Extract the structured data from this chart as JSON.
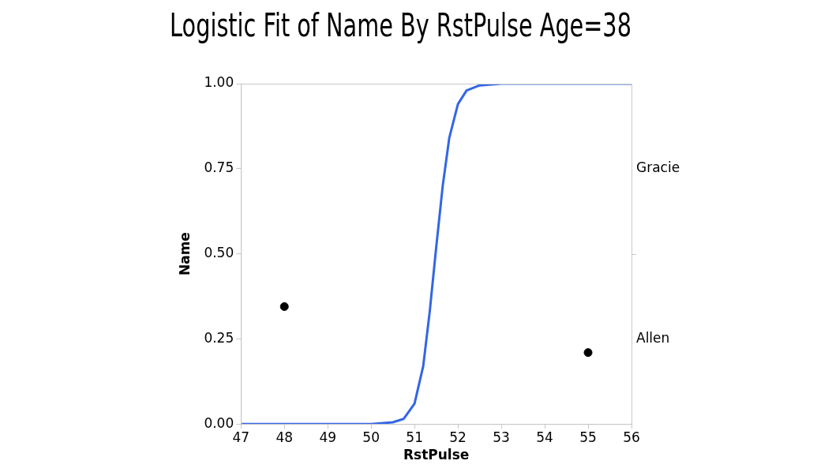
{
  "chart_data": {
    "type": "line",
    "title": "Logistic Fit of Name By RstPulse Age=38",
    "xlabel": "RstPulse",
    "ylabel": "Name",
    "xlim": [
      47,
      56
    ],
    "xticks": [
      47,
      48,
      49,
      50,
      51,
      52,
      53,
      54,
      55,
      56
    ],
    "ylim": [
      0,
      1
    ],
    "yticks": [
      {
        "value": 0,
        "label": "0.00"
      },
      {
        "value": 0.25,
        "label": "0.25"
      },
      {
        "value": 0.5,
        "label": "0.50"
      },
      {
        "value": 0.75,
        "label": "0.75"
      },
      {
        "value": 1,
        "label": "1.00"
      }
    ],
    "annotations": [
      "Gracie",
      "Allen"
    ],
    "grid": false,
    "legend": false,
    "series": [
      {
        "color": "#3366e6",
        "marker": "none",
        "x": [
          47,
          50,
          50.5,
          50.75,
          51,
          51.2,
          51.35,
          51.5,
          51.65,
          51.8,
          52,
          52.2,
          52.5,
          53,
          56
        ],
        "values": [
          0,
          0,
          0.005,
          0.015,
          0.06,
          0.17,
          0.33,
          0.52,
          0.7,
          0.84,
          0.94,
          0.98,
          0.995,
          1,
          1
        ]
      },
      {
        "type": "scatter",
        "color": "#000000",
        "marker": "circle",
        "x": [
          48,
          55
        ],
        "values": [
          0.345,
          0.21
        ]
      }
    ]
  }
}
